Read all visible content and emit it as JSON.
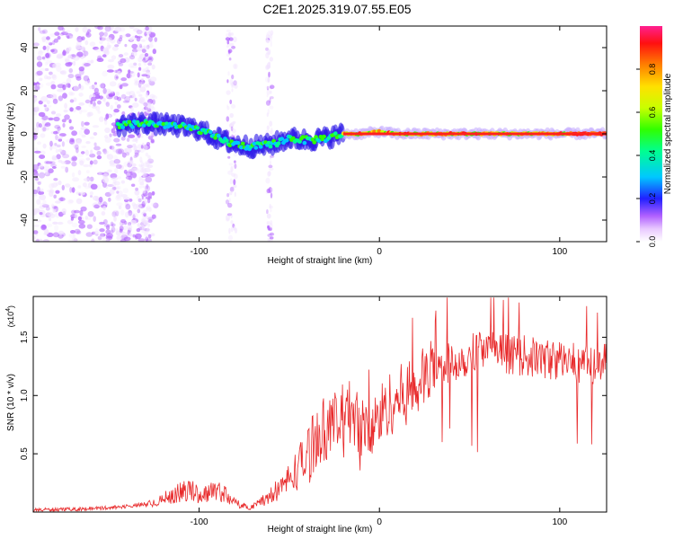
{
  "title": "C2E1.2025.319.07.55.E05",
  "colors": {
    "snr_line": "#e8292a",
    "axis": "#000000"
  },
  "chart_data": [
    {
      "type": "heatmap",
      "title": "C2E1.2025.319.07.55.E05",
      "xlabel": "Height of straight line (km)",
      "ylabel": "Frequency (Hz)",
      "xlim": [
        -192,
        126
      ],
      "ylim": [
        -50,
        50
      ],
      "x_ticks": [
        -100,
        0,
        100
      ],
      "x_tick_labels": [
        "-100",
        "0",
        "100"
      ],
      "y_ticks": [
        -40,
        -20,
        0,
        20,
        40
      ],
      "y_tick_labels": [
        "-40",
        "-20",
        "0",
        "20",
        "40"
      ],
      "colorbar": {
        "label": "Normalized spectral amplitude",
        "range": [
          0,
          1
        ],
        "ticks": [
          0.0,
          0.2,
          0.4,
          0.6,
          0.8
        ],
        "tick_labels": [
          "0.0",
          "0.2",
          "0.4",
          "0.6",
          "0.8"
        ]
      },
      "ridge": {
        "x": [
          -145,
          -130,
          -115,
          -100,
          -90,
          -80,
          -70,
          -60,
          -50,
          -40,
          -30,
          -20,
          -10,
          0,
          10,
          30,
          60,
          90,
          105,
          126
        ],
        "frequency": [
          4,
          5,
          4,
          2,
          -2,
          -5,
          -6,
          -5,
          -2,
          -3,
          -2,
          0,
          0,
          1,
          0,
          0,
          0,
          0,
          0,
          0
        ]
      }
    },
    {
      "type": "line",
      "xlabel": "Height of straight line (km)",
      "ylabel": "SNR (10 * v/v)",
      "y_multiplier_label": "(x10",
      "y_multiplier_exp": "4",
      "xlim": [
        -192,
        126
      ],
      "ylim": [
        0,
        1.85
      ],
      "x_ticks": [
        -100,
        0,
        100
      ],
      "x_tick_labels": [
        "-100",
        "0",
        "100"
      ],
      "y_ticks": [
        0.5,
        1.0,
        1.5
      ],
      "y_tick_labels": [
        "0.5",
        "1.0",
        "1.5"
      ],
      "series": [
        {
          "name": "SNR",
          "x": [
            -192,
            -160,
            -140,
            -125,
            -120,
            -110,
            -105,
            -100,
            -92,
            -85,
            -80,
            -72,
            -65,
            -60,
            -50,
            -40,
            -35,
            -30,
            -25,
            -20,
            -15,
            -10,
            -5,
            0,
            5,
            10,
            15,
            20,
            30,
            40,
            50,
            55,
            60,
            70,
            80,
            90,
            100,
            110,
            120,
            126
          ],
          "y": [
            0.02,
            0.03,
            0.05,
            0.08,
            0.12,
            0.18,
            0.2,
            0.15,
            0.2,
            0.16,
            0.08,
            0.04,
            0.1,
            0.15,
            0.3,
            0.5,
            0.7,
            0.75,
            0.78,
            0.85,
            0.9,
            0.75,
            0.7,
            0.85,
            0.95,
            1.0,
            1.05,
            1.1,
            1.25,
            1.3,
            1.35,
            1.45,
            1.4,
            1.38,
            1.36,
            1.33,
            1.32,
            1.3,
            1.28,
            1.3
          ]
        }
      ]
    }
  ]
}
